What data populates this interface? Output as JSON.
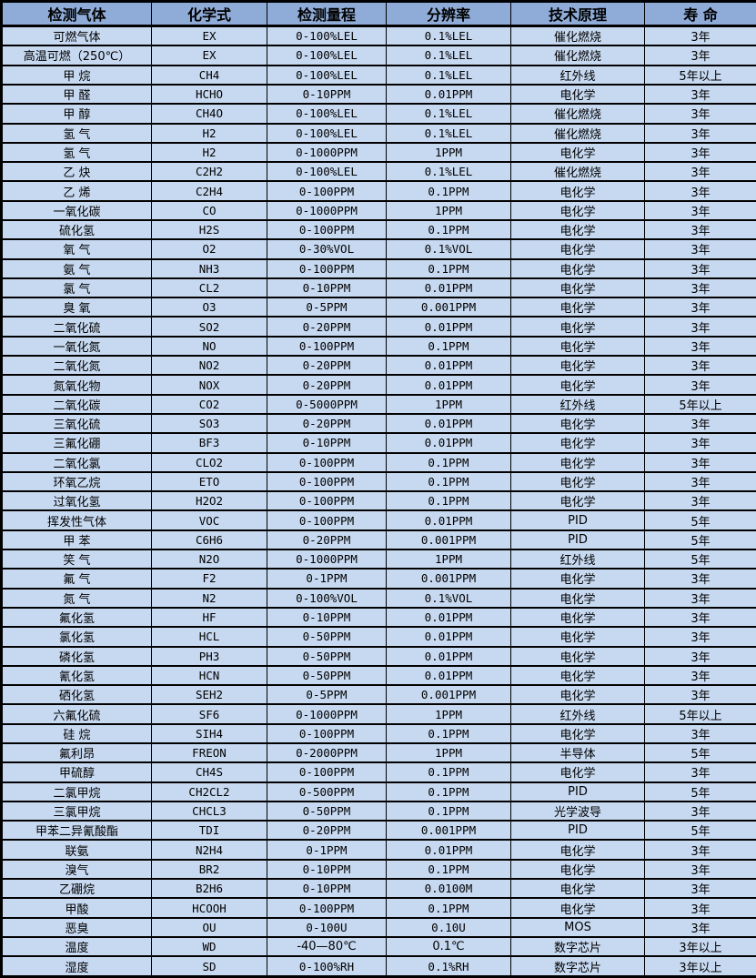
{
  "table": {
    "colors": {
      "header_bg": "#8FACD8",
      "row_bg": "#C7D9F1",
      "border": "#000000",
      "text": "#000000"
    },
    "headers": [
      "检测气体",
      "化学式",
      "检测量程",
      "分辨率",
      "技术原理",
      "寿 命"
    ],
    "rows": [
      [
        "可燃气体",
        "EX",
        "0-100%LEL",
        "0.1%LEL",
        "催化燃烧",
        "3年"
      ],
      [
        "高温可燃（250℃）",
        "EX",
        "0-100%LEL",
        "0.1%LEL",
        "催化燃烧",
        "3年"
      ],
      [
        "甲 烷",
        "CH4",
        "0-100%LEL",
        "0.1%LEL",
        "红外线",
        "5年以上"
      ],
      [
        "甲 醛",
        "HCHO",
        "0-10PPM",
        "0.01PPM",
        "电化学",
        "3年"
      ],
      [
        "甲 醇",
        "CH4O",
        "0-100%LEL",
        "0.1%LEL",
        "催化燃烧",
        "3年"
      ],
      [
        "氢 气",
        "H2",
        "0-100%LEL",
        "0.1%LEL",
        "催化燃烧",
        "3年"
      ],
      [
        "氢 气",
        "H2",
        "0-1000PPM",
        "1PPM",
        "电化学",
        "3年"
      ],
      [
        "乙 炔",
        "C2H2",
        "0-100%LEL",
        "0.1%LEL",
        "催化燃烧",
        "3年"
      ],
      [
        "乙 烯",
        "C2H4",
        "0-100PPM",
        "0.1PPM",
        "电化学",
        "3年"
      ],
      [
        "一氧化碳",
        "CO",
        "0-1000PPM",
        "1PPM",
        "电化学",
        "3年"
      ],
      [
        "硫化氢",
        "H2S",
        "0-100PPM",
        "0.1PPM",
        "电化学",
        "3年"
      ],
      [
        "氧 气",
        "O2",
        "0-30%VOL",
        "0.1%VOL",
        "电化学",
        "3年"
      ],
      [
        "氨 气",
        "NH3",
        "0-100PPM",
        "0.1PPM",
        "电化学",
        "3年"
      ],
      [
        "氯 气",
        "CL2",
        "0-10PPM",
        "0.01PPM",
        "电化学",
        "3年"
      ],
      [
        "臭 氧",
        "O3",
        "0-5PPM",
        "0.001PPM",
        "电化学",
        "3年"
      ],
      [
        "二氧化硫",
        "SO2",
        "0-20PPM",
        "0.01PPM",
        "电化学",
        "3年"
      ],
      [
        "一氧化氮",
        "NO",
        "0-100PPM",
        "0.1PPM",
        "电化学",
        "3年"
      ],
      [
        "二氧化氮",
        "NO2",
        "0-20PPM",
        "0.01PPM",
        "电化学",
        "3年"
      ],
      [
        "氮氧化物",
        "NOX",
        "0-20PPM",
        "0.01PPM",
        "电化学",
        "3年"
      ],
      [
        "二氧化碳",
        "CO2",
        "0-5000PPM",
        "1PPM",
        "红外线",
        "5年以上"
      ],
      [
        "三氧化硫",
        "SO3",
        "0-20PPM",
        "0.01PPM",
        "电化学",
        "3年"
      ],
      [
        "三氟化硼",
        "BF3",
        "0-10PPM",
        "0.01PPM",
        "电化学",
        "3年"
      ],
      [
        "二氧化氯",
        "CLO2",
        "0-100PPM",
        "0.1PPM",
        "电化学",
        "3年"
      ],
      [
        "环氧乙烷",
        "ETO",
        "0-100PPM",
        "0.1PPM",
        "电化学",
        "3年"
      ],
      [
        "过氧化氢",
        "H2O2",
        "0-100PPM",
        "0.1PPM",
        "电化学",
        "3年"
      ],
      [
        "挥发性气体",
        "VOC",
        "0-100PPM",
        "0.01PPM",
        "PID",
        "5年"
      ],
      [
        "甲 苯",
        "C6H6",
        "0-20PPM",
        "0.001PPM",
        "PID",
        "5年"
      ],
      [
        "笑 气",
        "N2O",
        "0-1000PPM",
        "1PPM",
        "红外线",
        "5年"
      ],
      [
        "氟 气",
        "F2",
        "0-1PPM",
        "0.001PPM",
        "电化学",
        "3年"
      ],
      [
        "氮 气",
        "N2",
        "0-100%VOL",
        "0.1%VOL",
        "电化学",
        "3年"
      ],
      [
        "氟化氢",
        "HF",
        "0-10PPM",
        "0.01PPM",
        "电化学",
        "3年"
      ],
      [
        "氯化氢",
        "HCL",
        "0-50PPM",
        "0.01PPM",
        "电化学",
        "3年"
      ],
      [
        "磷化氢",
        "PH3",
        "0-50PPM",
        "0.01PPM",
        "电化学",
        "3年"
      ],
      [
        "氰化氢",
        "HCN",
        "0-50PPM",
        "0.01PPM",
        "电化学",
        "3年"
      ],
      [
        "硒化氢",
        "SEH2",
        "0-5PPM",
        "0.001PPM",
        "电化学",
        "3年"
      ],
      [
        "六氟化硫",
        "SF6",
        "0-1000PPM",
        "1PPM",
        "红外线",
        "5年以上"
      ],
      [
        "硅 烷",
        "SIH4",
        "0-100PPM",
        "0.1PPM",
        "电化学",
        "3年"
      ],
      [
        "氟利昂",
        "FREON",
        "0-2000PPM",
        "1PPM",
        "半导体",
        "5年"
      ],
      [
        "甲硫醇",
        "CH4S",
        "0-100PPM",
        "0.1PPM",
        "电化学",
        "3年"
      ],
      [
        "二氯甲烷",
        "CH2CL2",
        "0-500PPM",
        "0.1PPM",
        "PID",
        "5年"
      ],
      [
        "三氯甲烷",
        "CHCL3",
        "0-50PPM",
        "0.1PPM",
        "光学波导",
        "3年"
      ],
      [
        "甲苯二异氰酸酯",
        "TDI",
        "0-20PPM",
        "0.001PPM",
        "PID",
        "5年"
      ],
      [
        "联氨",
        "N2H4",
        "0-1PPM",
        "0.01PPM",
        "电化学",
        "3年"
      ],
      [
        "溴气",
        "BR2",
        "0-10PPM",
        "0.1PPM",
        "电化学",
        "3年"
      ],
      [
        "乙硼烷",
        "B2H6",
        "0-10PPM",
        "0.0100M",
        "电化学",
        "3年"
      ],
      [
        "甲酸",
        "HCOOH",
        "0-100PPM",
        "0.1PPM",
        "电化学",
        "3年"
      ],
      [
        "恶臭",
        "OU",
        "0-100U",
        "0.10U",
        "MOS",
        "3年"
      ],
      [
        "温度",
        "WD",
        "-40—80℃",
        "0.1℃",
        "数字芯片",
        "3年以上"
      ],
      [
        "湿度",
        "SD",
        "0-100%RH",
        "0.1%RH",
        "数字芯片",
        "3年以上"
      ]
    ]
  }
}
